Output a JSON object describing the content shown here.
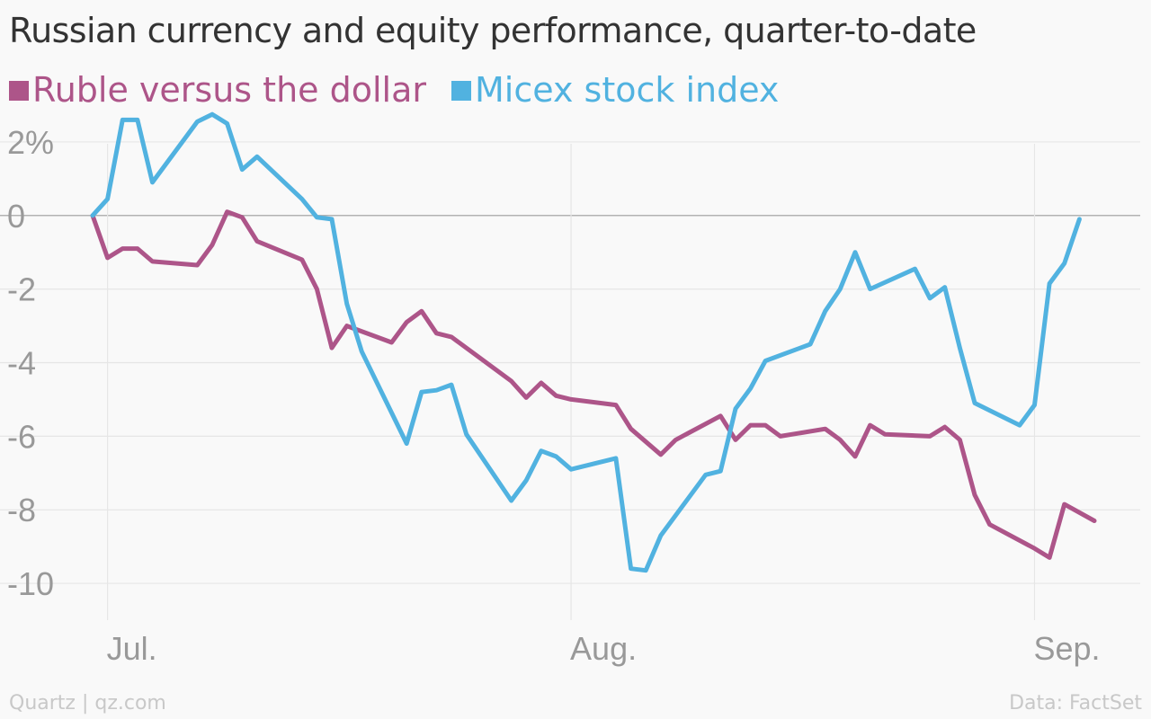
{
  "title": "Russian currency and equity performance, quarter-to-date",
  "footer": {
    "source_left": "Quartz | qz.com",
    "source_right": "Data: FactSet"
  },
  "colors": {
    "ruble": "#ad5589",
    "micex": "#51b2e0",
    "grid": "#e6e6e6",
    "zero_line": "#b3b3b3",
    "tick_text": "#999999",
    "background": "#f9f9f9"
  },
  "chart_data": {
    "type": "line",
    "title": "Russian currency and equity performance, quarter-to-date",
    "xlabel": "",
    "ylabel": "",
    "x_ticks": [
      {
        "label": "Jul.",
        "day": 1
      },
      {
        "label": "Aug.",
        "day": 32
      },
      {
        "label": "Sep.",
        "day": 63
      }
    ],
    "xlim": [
      0,
      67
    ],
    "ylim": [
      -11,
      3
    ],
    "y_ticks": [
      {
        "value": 2,
        "label": "2%"
      },
      {
        "value": 0,
        "label": "0"
      },
      {
        "value": -2,
        "label": "-2"
      },
      {
        "value": -4,
        "label": "-4"
      },
      {
        "value": -6,
        "label": "-6"
      },
      {
        "value": -8,
        "label": "-8"
      },
      {
        "value": -10,
        "label": "-10"
      }
    ],
    "grid": true,
    "legend_position": "top-left",
    "series": [
      {
        "name": "Ruble versus the dollar",
        "color_key": "ruble",
        "points": [
          [
            0,
            0
          ],
          [
            1,
            -1.15
          ],
          [
            2,
            -0.9
          ],
          [
            3,
            -0.9
          ],
          [
            4,
            -1.25
          ],
          [
            7,
            -1.35
          ],
          [
            8,
            -0.8
          ],
          [
            9,
            0.1
          ],
          [
            10,
            -0.05
          ],
          [
            11,
            -0.7
          ],
          [
            14,
            -1.2
          ],
          [
            15,
            -2.0
          ],
          [
            16,
            -3.6
          ],
          [
            17,
            -3.0
          ],
          [
            20,
            -3.45
          ],
          [
            21,
            -2.9
          ],
          [
            22,
            -2.6
          ],
          [
            23,
            -3.2
          ],
          [
            24,
            -3.3
          ],
          [
            28,
            -4.5
          ],
          [
            29,
            -4.95
          ],
          [
            30,
            -4.55
          ],
          [
            31,
            -4.9
          ],
          [
            32,
            -5.0
          ],
          [
            35,
            -5.15
          ],
          [
            36,
            -5.8
          ],
          [
            38,
            -6.5
          ],
          [
            39,
            -6.1
          ],
          [
            42,
            -5.45
          ],
          [
            43,
            -6.1
          ],
          [
            44,
            -5.7
          ],
          [
            45,
            -5.7
          ],
          [
            46,
            -6.0
          ],
          [
            49,
            -5.8
          ],
          [
            50,
            -6.1
          ],
          [
            51,
            -6.55
          ],
          [
            52,
            -5.7
          ],
          [
            53,
            -5.95
          ],
          [
            56,
            -6.0
          ],
          [
            57,
            -5.75
          ],
          [
            58,
            -6.1
          ],
          [
            59,
            -7.6
          ],
          [
            60,
            -8.4
          ],
          [
            63,
            -9.05
          ],
          [
            64,
            -9.3
          ],
          [
            65,
            -7.85
          ],
          [
            67,
            -8.3
          ]
        ]
      },
      {
        "name": "Micex stock index",
        "color_key": "micex",
        "points": [
          [
            0,
            0
          ],
          [
            1,
            0.45
          ],
          [
            2,
            2.6
          ],
          [
            3,
            2.6
          ],
          [
            4,
            0.9
          ],
          [
            7,
            2.55
          ],
          [
            8,
            2.75
          ],
          [
            9,
            2.5
          ],
          [
            10,
            1.25
          ],
          [
            11,
            1.6
          ],
          [
            14,
            0.45
          ],
          [
            15,
            -0.05
          ],
          [
            16,
            -0.1
          ],
          [
            17,
            -2.4
          ],
          [
            18,
            -3.7
          ],
          [
            21,
            -6.2
          ],
          [
            22,
            -4.8
          ],
          [
            23,
            -4.75
          ],
          [
            24,
            -4.6
          ],
          [
            25,
            -5.95
          ],
          [
            28,
            -7.75
          ],
          [
            29,
            -7.2
          ],
          [
            30,
            -6.4
          ],
          [
            31,
            -6.55
          ],
          [
            32,
            -6.9
          ],
          [
            35,
            -6.6
          ],
          [
            36,
            -9.6
          ],
          [
            37,
            -9.65
          ],
          [
            38,
            -8.7
          ],
          [
            41,
            -7.05
          ],
          [
            42,
            -6.95
          ],
          [
            43,
            -5.25
          ],
          [
            44,
            -4.7
          ],
          [
            45,
            -3.95
          ],
          [
            48,
            -3.5
          ],
          [
            49,
            -2.6
          ],
          [
            50,
            -2.0
          ],
          [
            51,
            -1.0
          ],
          [
            52,
            -2.0
          ],
          [
            55,
            -1.45
          ],
          [
            56,
            -2.25
          ],
          [
            57,
            -1.95
          ],
          [
            58,
            -3.6
          ],
          [
            59,
            -5.1
          ],
          [
            62,
            -5.7
          ],
          [
            63,
            -5.15
          ],
          [
            64,
            -1.85
          ],
          [
            65,
            -1.3
          ],
          [
            66,
            -0.1
          ]
        ]
      }
    ]
  }
}
